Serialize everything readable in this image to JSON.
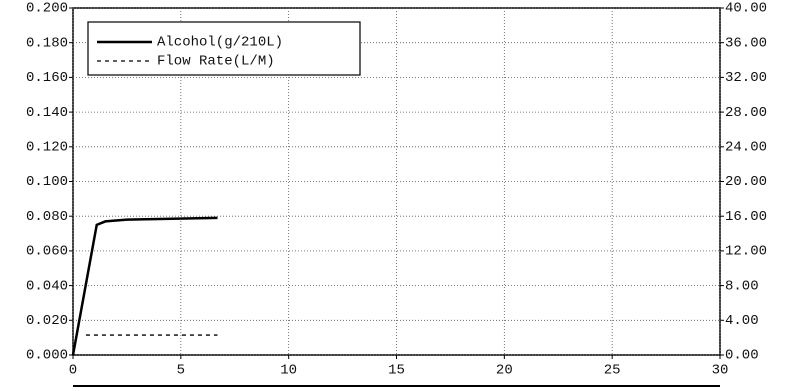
{
  "chart_data": {
    "type": "line",
    "xlim": [
      0,
      30
    ],
    "xticks": [
      0,
      5,
      10,
      15,
      20,
      25,
      30
    ],
    "ylim": [
      0,
      0.2
    ],
    "yticks": [
      {
        "value": 0,
        "label": "0.000"
      },
      {
        "value": 0.02,
        "label": "0.020"
      },
      {
        "value": 0.04,
        "label": "0.040"
      },
      {
        "value": 0.06,
        "label": "0.060"
      },
      {
        "value": 0.08,
        "label": "0.080"
      },
      {
        "value": 0.1,
        "label": "0.100"
      },
      {
        "value": 0.12,
        "label": "0.120"
      },
      {
        "value": 0.14,
        "label": "0.140"
      },
      {
        "value": 0.16,
        "label": "0.160"
      },
      {
        "value": 0.18,
        "label": "0.180"
      },
      {
        "value": 0.2,
        "label": "0.200"
      }
    ],
    "y2lim": [
      0,
      40
    ],
    "y2ticks": [
      {
        "value": 0,
        "label": "0.00"
      },
      {
        "value": 4,
        "label": "4.00"
      },
      {
        "value": 8,
        "label": "8.00"
      },
      {
        "value": 12,
        "label": "12.00"
      },
      {
        "value": 16,
        "label": "16.00"
      },
      {
        "value": 20,
        "label": "20.00"
      },
      {
        "value": 24,
        "label": "24.00"
      },
      {
        "value": 28,
        "label": "28.00"
      },
      {
        "value": 32,
        "label": "32.00"
      },
      {
        "value": 36,
        "label": "36.00"
      },
      {
        "value": 40,
        "label": "40.00"
      }
    ],
    "grid": true,
    "legend": "upper left",
    "series": [
      {
        "name": "Alcohol(g/210L)",
        "color": "#000000",
        "style": "solid",
        "axis": "y",
        "x": [
          0,
          1.1,
          1.5,
          2.5,
          6.7
        ],
        "values": [
          0,
          0.075,
          0.077,
          0.078,
          0.079
        ]
      },
      {
        "name": "Flow Rate(L/M)",
        "color": "#000000",
        "style": "dashed",
        "axis": "y2",
        "x": [
          0.6,
          6.7
        ],
        "values": [
          2.3,
          2.3
        ]
      }
    ]
  }
}
